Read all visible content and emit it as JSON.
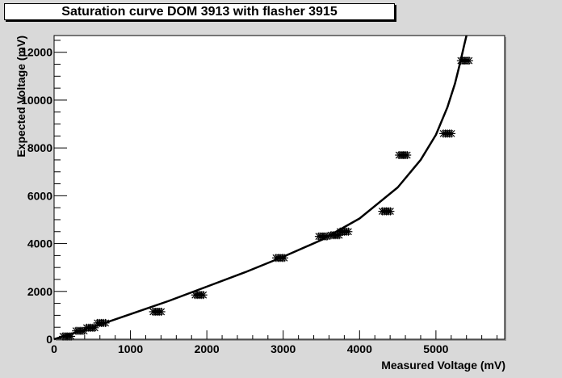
{
  "chart_data": {
    "type": "scatter",
    "title": "Saturation curve DOM 3913 with flasher 3915",
    "xlabel": "Measured Voltage (mV)",
    "ylabel": "Expected Voltage (mV)",
    "xlim": [
      0,
      5900
    ],
    "ylim": [
      0,
      12700
    ],
    "x_ticks": [
      0,
      1000,
      2000,
      3000,
      4000,
      5000
    ],
    "y_ticks": [
      0,
      2000,
      4000,
      6000,
      8000,
      10000,
      12000
    ],
    "x_tick_labels": [
      "0",
      "1000",
      "2000",
      "3000",
      "4000",
      "5000"
    ],
    "y_tick_labels": [
      "0",
      "2000",
      "4000",
      "6000",
      "8000",
      "10000",
      "12000"
    ],
    "grid": false,
    "points": [
      {
        "x": 170,
        "y": 120
      },
      {
        "x": 340,
        "y": 350
      },
      {
        "x": 480,
        "y": 480
      },
      {
        "x": 620,
        "y": 680
      },
      {
        "x": 1350,
        "y": 1150
      },
      {
        "x": 1900,
        "y": 1850
      },
      {
        "x": 2960,
        "y": 3400
      },
      {
        "x": 3520,
        "y": 4300
      },
      {
        "x": 3680,
        "y": 4350
      },
      {
        "x": 3800,
        "y": 4500
      },
      {
        "x": 4350,
        "y": 5350
      },
      {
        "x": 4570,
        "y": 7700
      },
      {
        "x": 5150,
        "y": 8600
      },
      {
        "x": 5380,
        "y": 11650
      }
    ],
    "fit_curve": {
      "x": [
        0,
        500,
        1000,
        1500,
        2000,
        2500,
        3000,
        3500,
        4000,
        4500,
        4800,
        5000,
        5150,
        5250,
        5320,
        5370,
        5400
      ],
      "y": [
        0,
        500,
        1050,
        1600,
        2200,
        2800,
        3450,
        4150,
        5050,
        6350,
        7500,
        8550,
        9700,
        10700,
        11600,
        12300,
        12700
      ]
    }
  }
}
